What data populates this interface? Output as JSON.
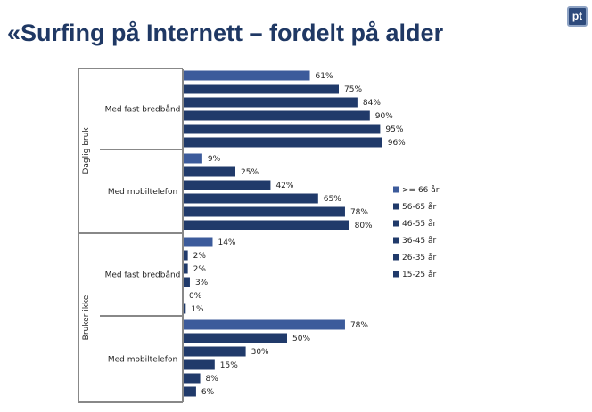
{
  "title": "«Surfing på Internett – fordelt på alder",
  "logo_text": "pt",
  "chart_data": {
    "type": "bar",
    "orientation": "horizontal",
    "outer_groups": [
      {
        "label": "Daglig bruk",
        "groups": [
          {
            "label": "Med fast bredbånd",
            "values": [
              61,
              75,
              84,
              90,
              95,
              96
            ]
          },
          {
            "label": "Med mobiltelefon",
            "values": [
              9,
              25,
              42,
              65,
              78,
              80
            ]
          }
        ]
      },
      {
        "label": "Bruker ikke",
        "groups": [
          {
            "label": "Med fast bredbånd",
            "values": [
              14,
              2,
              2,
              3,
              0,
              1
            ]
          },
          {
            "label": "Med mobiltelefon",
            "values": [
              78,
              50,
              30,
              15,
              8,
              6
            ]
          }
        ]
      }
    ],
    "series_names": [
      ">= 66 år",
      "56-65 år",
      "46-55 år",
      "36-45 år",
      "26-35 år",
      "15-25 år"
    ],
    "series_colors": [
      "#3c5b9b",
      "#203a6a",
      "#203a6a",
      "#203a6a",
      "#203a6a",
      "#203a6a"
    ],
    "value_format": "percent",
    "xlim": [
      0,
      100
    ],
    "legend_position": "right",
    "grid": false
  }
}
